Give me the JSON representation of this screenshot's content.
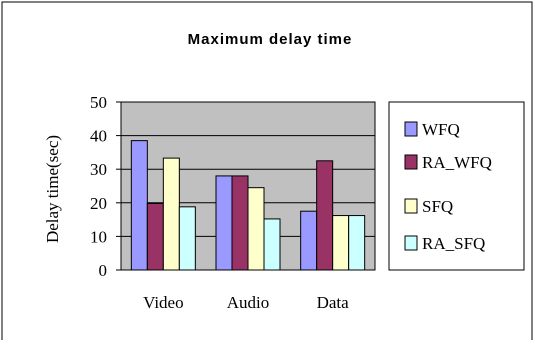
{
  "chart_data": {
    "type": "bar",
    "title": "Maximum delay time",
    "xlabel": "",
    "ylabel": "Delay time(sec)",
    "ylim": [
      0,
      50
    ],
    "yticks": [
      "0",
      "10",
      "20",
      "30",
      "40",
      "50"
    ],
    "categories": [
      "Video",
      "Audio",
      "Data"
    ],
    "series": [
      {
        "name": "WFQ",
        "values": [
          38.5,
          28,
          17.5
        ],
        "color": "#9999ff"
      },
      {
        "name": "RA_WFQ",
        "values": [
          19.8,
          28,
          32.5
        ],
        "color": "#993366"
      },
      {
        "name": "SFQ",
        "values": [
          33.3,
          24.5,
          16.2
        ],
        "color": "#ffffcc"
      },
      {
        "name": "RA_SFQ",
        "values": [
          18.8,
          15.2,
          16.2
        ],
        "color": "#ccffff"
      }
    ],
    "grid": true,
    "plot_background": "#c0c0c0",
    "legend_position": "right"
  }
}
